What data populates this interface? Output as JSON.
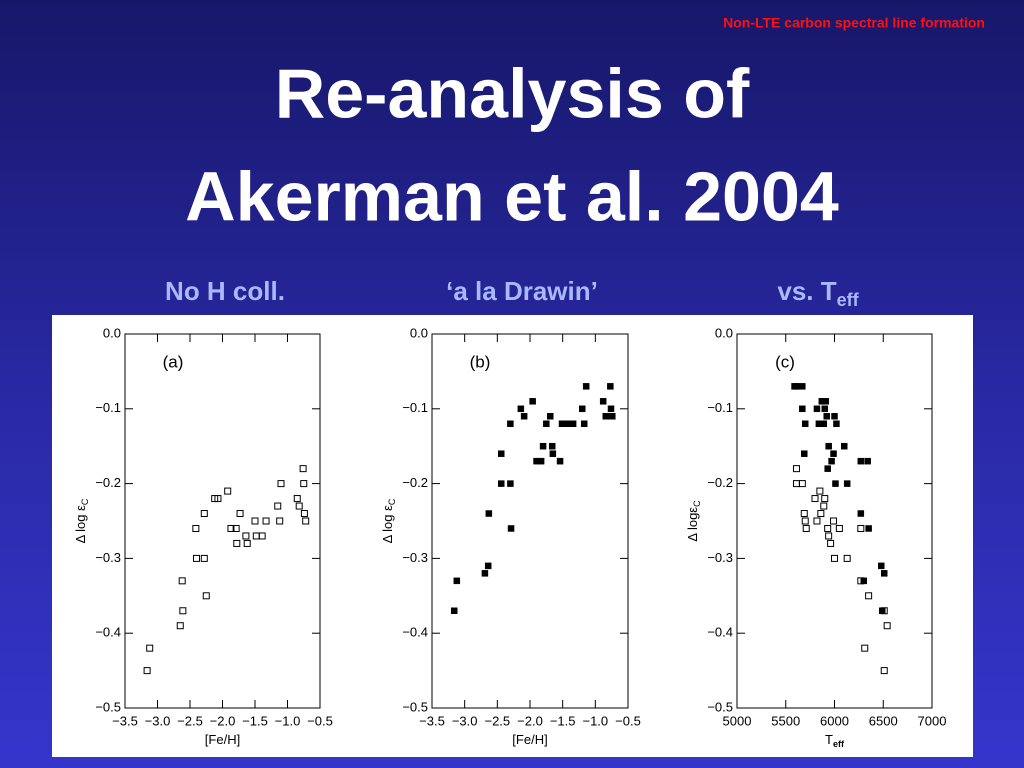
{
  "slide": {
    "header": "Non-LTE carbon spectral line formation",
    "title_lines": [
      "Re-analysis of",
      "Akerman et al. 2004"
    ],
    "panel_titles": [
      {
        "text": "No H coll."
      },
      {
        "text": "‘a la Drawin’"
      },
      {
        "text": "vs. T",
        "sub": "eff"
      }
    ]
  },
  "chart_data": [
    {
      "type": "scatter",
      "annotation": "(a)",
      "xlabel": "[Fe/H]",
      "ylabel": "Δ log ε",
      "ylabel_sub": "C",
      "xlim": [
        -3.5,
        -0.5
      ],
      "ylim": [
        -0.5,
        0
      ],
      "xticks": [
        {
          "value": -3.5,
          "label": "−3.5"
        },
        {
          "value": -3,
          "label": "−3.0"
        },
        {
          "value": -2.5,
          "label": "−2.5"
        },
        {
          "value": -2,
          "label": "−2.0"
        },
        {
          "value": -1.5,
          "label": "−1.5"
        },
        {
          "value": -1,
          "label": "−1.0"
        },
        {
          "value": -0.5,
          "label": "−0.5"
        }
      ],
      "yticks": [
        {
          "value": 0,
          "label": "0.0"
        },
        {
          "value": -0.1,
          "label": "−0.1"
        },
        {
          "value": -0.2,
          "label": "−0.2"
        },
        {
          "value": -0.3,
          "label": "−0.3"
        },
        {
          "value": -0.4,
          "label": "−0.4"
        },
        {
          "value": -0.5,
          "label": "−0.5"
        }
      ],
      "series": [
        {
          "marker": "open",
          "color": "#000000",
          "x": [
            -3.16,
            -3.12,
            -2.65,
            -2.62,
            -2.61,
            -2.41,
            -2.4,
            -2.28,
            -2.28,
            -2.25,
            -2.12,
            -2.07,
            -1.92,
            -1.87,
            -1.79,
            -1.78,
            -1.73,
            -1.64,
            -1.62,
            -1.5,
            -1.48,
            -1.39,
            -1.33,
            -1.15,
            -1.12,
            -1.1,
            -0.85,
            -0.82,
            -0.76,
            -0.75,
            -0.74,
            -0.72
          ],
          "y": [
            -0.45,
            -0.42,
            -0.39,
            -0.33,
            -0.37,
            -0.26,
            -0.3,
            -0.3,
            -0.24,
            -0.35,
            -0.22,
            -0.22,
            -0.21,
            -0.26,
            -0.26,
            -0.28,
            -0.24,
            -0.27,
            -0.28,
            -0.25,
            -0.27,
            -0.27,
            -0.25,
            -0.23,
            -0.25,
            -0.2,
            -0.22,
            -0.23,
            -0.18,
            -0.2,
            -0.24,
            -0.25
          ]
        }
      ]
    },
    {
      "type": "scatter",
      "annotation": "(b)",
      "xlabel": "[Fe/H]",
      "ylabel": "Δ log ε",
      "ylabel_sub": "C",
      "xlim": [
        -3.5,
        -0.5
      ],
      "ylim": [
        -0.5,
        0
      ],
      "xticks": [
        {
          "value": -3.5,
          "label": "−3.5"
        },
        {
          "value": -3,
          "label": "−3.0"
        },
        {
          "value": -2.5,
          "label": "−2.5"
        },
        {
          "value": -2,
          "label": "−2.0"
        },
        {
          "value": -1.5,
          "label": "−1.5"
        },
        {
          "value": -1,
          "label": "−1.0"
        },
        {
          "value": -0.5,
          "label": "−0.5"
        }
      ],
      "yticks": [
        {
          "value": 0,
          "label": "0.0"
        },
        {
          "value": -0.1,
          "label": "−0.1"
        },
        {
          "value": -0.2,
          "label": "−0.2"
        },
        {
          "value": -0.3,
          "label": "−0.3"
        },
        {
          "value": -0.4,
          "label": "−0.4"
        },
        {
          "value": -0.5,
          "label": "−0.5"
        }
      ],
      "series": [
        {
          "marker": "filled",
          "color": "#000000",
          "x": [
            -3.16,
            -3.12,
            -2.69,
            -2.64,
            -2.63,
            -2.44,
            -2.44,
            -2.3,
            -2.29,
            -2.3,
            -2.14,
            -2.09,
            -1.96,
            -1.9,
            -1.83,
            -1.8,
            -1.75,
            -1.69,
            -1.66,
            -1.65,
            -1.54,
            -1.51,
            -1.42,
            -1.34,
            -1.2,
            -1.17,
            -1.14,
            -0.88,
            -0.84,
            -0.77,
            -0.76,
            -0.74
          ],
          "y": [
            -0.37,
            -0.33,
            -0.32,
            -0.31,
            -0.24,
            -0.2,
            -0.16,
            -0.2,
            -0.26,
            -0.12,
            -0.1,
            -0.11,
            -0.09,
            -0.17,
            -0.17,
            -0.15,
            -0.12,
            -0.11,
            -0.15,
            -0.16,
            -0.17,
            -0.12,
            -0.12,
            -0.12,
            -0.1,
            -0.12,
            -0.07,
            -0.09,
            -0.11,
            -0.07,
            -0.1,
            -0.11
          ]
        }
      ]
    },
    {
      "type": "scatter",
      "annotation": "(c)",
      "xlabel": "T",
      "xlabel_sub": "eff",
      "ylabel": "Δ logε",
      "ylabel_sub": "C",
      "xlim": [
        5000,
        7000
      ],
      "ylim": [
        -0.5,
        0
      ],
      "xticks": [
        5000,
        5500,
        6000,
        6500,
        7000
      ],
      "yticks": [
        {
          "value": 0,
          "label": "0.0"
        },
        {
          "value": -0.1,
          "label": "−0.1"
        },
        {
          "value": -0.2,
          "label": "−0.2"
        },
        {
          "value": -0.3,
          "label": "−0.3"
        },
        {
          "value": -0.4,
          "label": "−0.4"
        },
        {
          "value": -0.5,
          "label": "−0.5"
        }
      ],
      "series": [
        {
          "marker": "filled",
          "color": "#000000",
          "x": [
            5590,
            5610,
            5670,
            5670,
            5700,
            5690,
            5820,
            5840,
            5850,
            5870,
            5890,
            5900,
            5910,
            5920,
            5930,
            5940,
            5970,
            5990,
            6000,
            6010,
            6020,
            6100,
            6130,
            6270,
            6270,
            6300,
            6340,
            6350,
            6480,
            6510,
            6490
          ],
          "y": [
            -0.07,
            -0.07,
            -0.07,
            -0.1,
            -0.12,
            -0.16,
            -0.1,
            -0.12,
            -0.12,
            -0.09,
            -0.12,
            -0.1,
            -0.09,
            -0.11,
            -0.18,
            -0.15,
            -0.17,
            -0.16,
            -0.11,
            -0.2,
            -0.12,
            -0.15,
            -0.2,
            -0.17,
            -0.24,
            -0.33,
            -0.17,
            -0.26,
            -0.31,
            -0.32,
            -0.37
          ]
        },
        {
          "marker": "open",
          "color": "#000000",
          "x": [
            5610,
            5610,
            5670,
            5690,
            5700,
            5710,
            5800,
            5820,
            5850,
            5860,
            5890,
            5900,
            5930,
            5940,
            5960,
            5990,
            6000,
            6050,
            6130,
            6270,
            6270,
            6310,
            6350,
            6510,
            6540,
            6510
          ],
          "y": [
            -0.18,
            -0.2,
            -0.2,
            -0.24,
            -0.25,
            -0.26,
            -0.22,
            -0.25,
            -0.21,
            -0.24,
            -0.23,
            -0.22,
            -0.26,
            -0.27,
            -0.28,
            -0.25,
            -0.3,
            -0.26,
            -0.3,
            -0.26,
            -0.33,
            -0.42,
            -0.35,
            -0.37,
            -0.39,
            -0.45
          ]
        }
      ]
    }
  ]
}
